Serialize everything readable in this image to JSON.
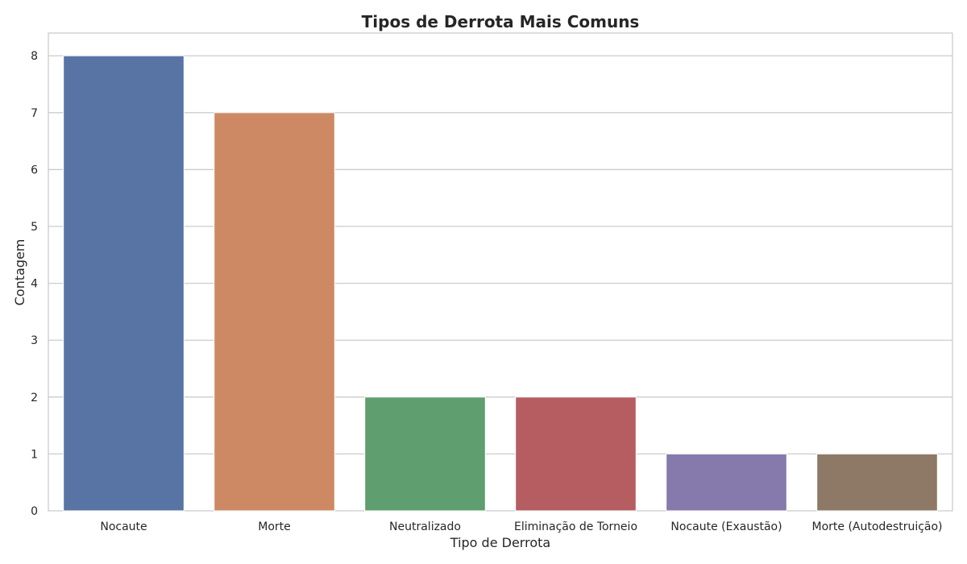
{
  "chart_data": {
    "type": "bar",
    "title": "Tipos de Derrota Mais Comuns",
    "xlabel": "Tipo de Derrota",
    "ylabel": "Contagem",
    "categories": [
      "Nocaute",
      "Morte",
      "Neutralizado",
      "Eliminação de Torneio",
      "Nocaute (Exaustão)",
      "Morte (Autodestruição)"
    ],
    "values": [
      8,
      7,
      2,
      2,
      1,
      1
    ],
    "colors": [
      "#5874a5",
      "#cc8963",
      "#5f9e6e",
      "#b55d60",
      "#857aab",
      "#8d7966"
    ],
    "ylim": [
      0,
      8.4
    ],
    "yticks": [
      0,
      1,
      2,
      3,
      4,
      5,
      6,
      7,
      8
    ],
    "grid": "horizontal",
    "legend": "none"
  }
}
